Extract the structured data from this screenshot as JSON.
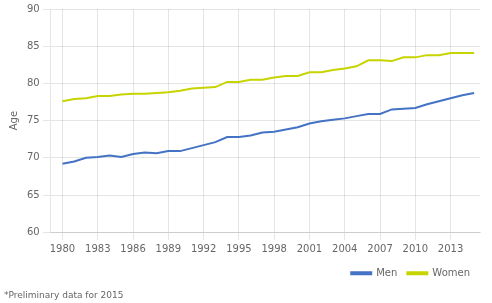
{
  "chart_data": {
    "type": "line",
    "x": [
      1980,
      1981,
      1982,
      1983,
      1984,
      1985,
      1986,
      1987,
      1988,
      1989,
      1990,
      1991,
      1992,
      1993,
      1994,
      1995,
      1996,
      1997,
      1998,
      1999,
      2000,
      2001,
      2002,
      2003,
      2004,
      2005,
      2006,
      2007,
      2008,
      2009,
      2010,
      2011,
      2012,
      2013,
      2014,
      2015
    ],
    "series": [
      {
        "name": "Men",
        "color": "#4472c4",
        "values": [
          69.2,
          69.5,
          70.0,
          70.1,
          70.3,
          70.1,
          70.5,
          70.7,
          70.6,
          70.9,
          70.9,
          71.3,
          71.7,
          72.1,
          72.8,
          72.8,
          73.0,
          73.4,
          73.5,
          73.8,
          74.1,
          74.6,
          74.9,
          75.1,
          75.3,
          75.6,
          75.9,
          75.9,
          76.5,
          76.6,
          76.7,
          77.2,
          77.6,
          78.0,
          78.4,
          78.7
        ]
      },
      {
        "name": "Women",
        "color": "#c8d400",
        "values": [
          77.6,
          77.9,
          78.0,
          78.3,
          78.3,
          78.5,
          78.6,
          78.6,
          78.7,
          78.8,
          79.0,
          79.3,
          79.4,
          79.5,
          80.2,
          80.2,
          80.5,
          80.5,
          80.8,
          81.0,
          81.0,
          81.5,
          81.5,
          81.8,
          82.0,
          82.3,
          83.1,
          83.1,
          83.0,
          83.5,
          83.5,
          83.8,
          83.8,
          84.1,
          84.1,
          84.1
        ]
      }
    ],
    "ylabel": "Age",
    "xlim": [
      1979,
      2015.5
    ],
    "xticks": [
      1980,
      1983,
      1986,
      1989,
      1992,
      1995,
      1998,
      2001,
      2004,
      2007,
      2010,
      2013
    ],
    "ylim": [
      60,
      90
    ],
    "yticks": [
      60,
      65,
      70,
      75,
      80,
      85,
      90
    ],
    "grid": true,
    "legend": "lower right",
    "annotations": [
      "*Preliminary data for 2015"
    ]
  }
}
